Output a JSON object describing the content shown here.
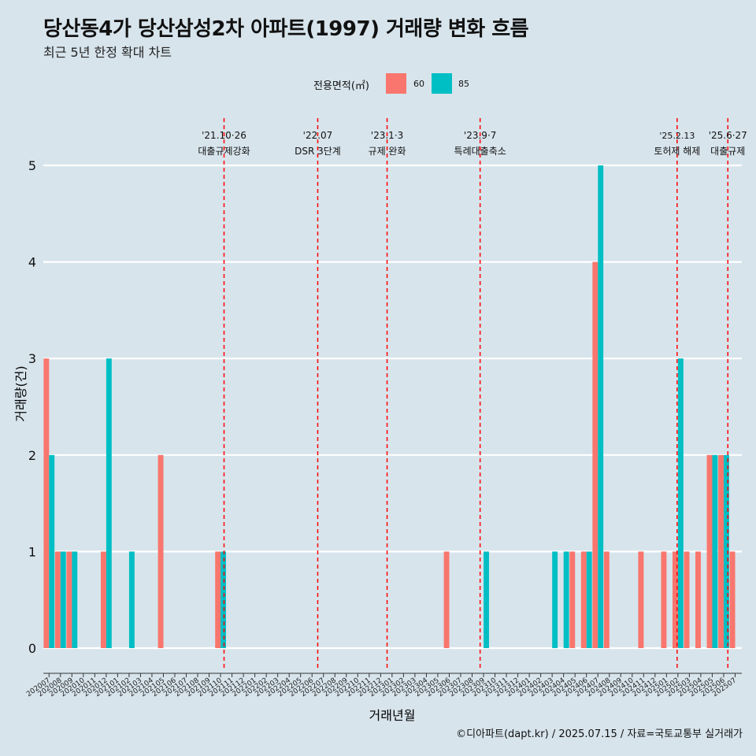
{
  "title": "당산동4가 당산삼성2차 아파트(1997) 거래량 변화 흐름",
  "subtitle": "최근 5년 한정 확대 차트",
  "caption": "©디아파트(dapt.kr) / 2025.07.15 / 자료=국토교통부 실거래가",
  "legend": {
    "title": "전용면적(㎡)",
    "items": [
      {
        "label": "60",
        "color": "#f8766d"
      },
      {
        "label": "85",
        "color": "#00bfc4"
      }
    ]
  },
  "chart_data": {
    "type": "bar",
    "xlabel": "거래년월",
    "ylabel": "거래량(건)",
    "ylim": [
      0,
      5
    ],
    "yticks": [
      0,
      1,
      2,
      3,
      4,
      5
    ],
    "grid": true,
    "legend_position": "top",
    "categories": [
      "202007",
      "202008",
      "202009",
      "202010",
      "202011",
      "202012",
      "202101",
      "202102",
      "202103",
      "202104",
      "202105",
      "202106",
      "202107",
      "202108",
      "202109",
      "202110",
      "202111",
      "202112",
      "202201",
      "202202",
      "202203",
      "202204",
      "202205",
      "202206",
      "202207",
      "202208",
      "202209",
      "202210",
      "202211",
      "202212",
      "202301",
      "202302",
      "202303",
      "202304",
      "202305",
      "202306",
      "202307",
      "202308",
      "202309",
      "202310",
      "202311",
      "202312",
      "202401",
      "202402",
      "202403",
      "202404",
      "202405",
      "202406",
      "202407",
      "202408",
      "202409",
      "202410",
      "202411",
      "202412",
      "202501",
      "202502",
      "202503",
      "202504",
      "202505",
      "202506",
      "202507"
    ],
    "series": [
      {
        "name": "60",
        "color": "#f8766d",
        "values": [
          3,
          1,
          1,
          0,
          0,
          1,
          0,
          0,
          0,
          0,
          2,
          0,
          0,
          0,
          0,
          1,
          0,
          0,
          0,
          0,
          0,
          0,
          0,
          0,
          0,
          0,
          0,
          0,
          0,
          0,
          0,
          0,
          0,
          0,
          0,
          1,
          0,
          0,
          0,
          0,
          0,
          0,
          0,
          0,
          0,
          0,
          1,
          1,
          4,
          1,
          0,
          0,
          1,
          0,
          1,
          1,
          1,
          1,
          2,
          2,
          1
        ]
      },
      {
        "name": "85",
        "color": "#00bfc4",
        "values": [
          2,
          1,
          1,
          0,
          0,
          3,
          0,
          1,
          0,
          0,
          0,
          0,
          0,
          0,
          0,
          1,
          0,
          0,
          0,
          0,
          0,
          0,
          0,
          0,
          0,
          0,
          0,
          0,
          0,
          0,
          0,
          0,
          0,
          0,
          0,
          0,
          0,
          0,
          1,
          0,
          0,
          0,
          0,
          0,
          1,
          1,
          0,
          1,
          5,
          0,
          0,
          0,
          0,
          0,
          0,
          3,
          0,
          0,
          2,
          2,
          0
        ]
      }
    ],
    "vlines": [
      {
        "date": "2021-10-26",
        "label1": "'21.10·26",
        "label2": "대출규제강화"
      },
      {
        "date": "2022-07-01",
        "label1": "'22.07",
        "label2": "DSR 3단계"
      },
      {
        "date": "2023-01-03",
        "label1": "'23.1·3",
        "label2": "규제 완화"
      },
      {
        "date": "2023-09-07",
        "label1": "'23.9·7",
        "label2": "특례대출축소"
      },
      {
        "date": "2025-02-13",
        "label1": "'25.2.13",
        "label2": "토허제 해제"
      },
      {
        "date": "2025-06-27",
        "label1": "'25.6·27",
        "label2": "대출규제"
      }
    ]
  }
}
